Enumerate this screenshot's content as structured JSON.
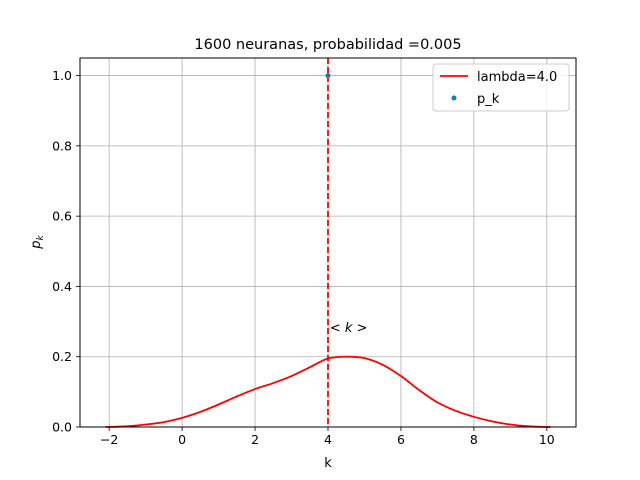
{
  "chart_data": {
    "type": "line",
    "title": "1600 neuranas, probabilidad =0.005",
    "xlabel": "k",
    "ylabel_base": "p",
    "ylabel_sub": "k",
    "xlim": [
      -2.8,
      10.8
    ],
    "ylim": [
      0,
      1.05
    ],
    "xticks": [
      -2,
      0,
      2,
      4,
      6,
      8,
      10
    ],
    "xtick_labels": [
      "−2",
      "0",
      "2",
      "4",
      "6",
      "8",
      "10"
    ],
    "yticks": [
      0.0,
      0.2,
      0.4,
      0.6,
      0.8,
      1.0
    ],
    "ytick_labels": [
      "0.0",
      "0.2",
      "0.4",
      "0.6",
      "0.8",
      "1.0"
    ],
    "grid": true,
    "legend_position": "top-right",
    "series": [
      {
        "name": "lambda=4.0",
        "kind": "line",
        "color": "#ff0000",
        "x": [
          -2.1,
          -1.5,
          -1,
          -0.5,
          0,
          0.5,
          1,
          1.5,
          2,
          2.5,
          3,
          3.5,
          4,
          4.5,
          5,
          5.5,
          6,
          6.5,
          7,
          7.5,
          8,
          8.5,
          9,
          9.5,
          10,
          10.1
        ],
        "y": [
          0.0,
          0.002,
          0.007,
          0.014,
          0.026,
          0.043,
          0.064,
          0.087,
          0.108,
          0.125,
          0.145,
          0.17,
          0.195,
          0.2,
          0.196,
          0.177,
          0.145,
          0.105,
          0.07,
          0.046,
          0.029,
          0.016,
          0.007,
          0.002,
          0.0,
          0.0
        ]
      },
      {
        "name": "p_k",
        "kind": "scatter",
        "color": "#1f77b4",
        "x": [
          4
        ],
        "y": [
          1.0
        ]
      }
    ],
    "vline": {
      "x": 4,
      "color": "#ff0000",
      "style": "dashed"
    },
    "annotation": {
      "text": "< k >",
      "x": 4.05,
      "y": 0.27,
      "color": "#ff0000"
    }
  }
}
